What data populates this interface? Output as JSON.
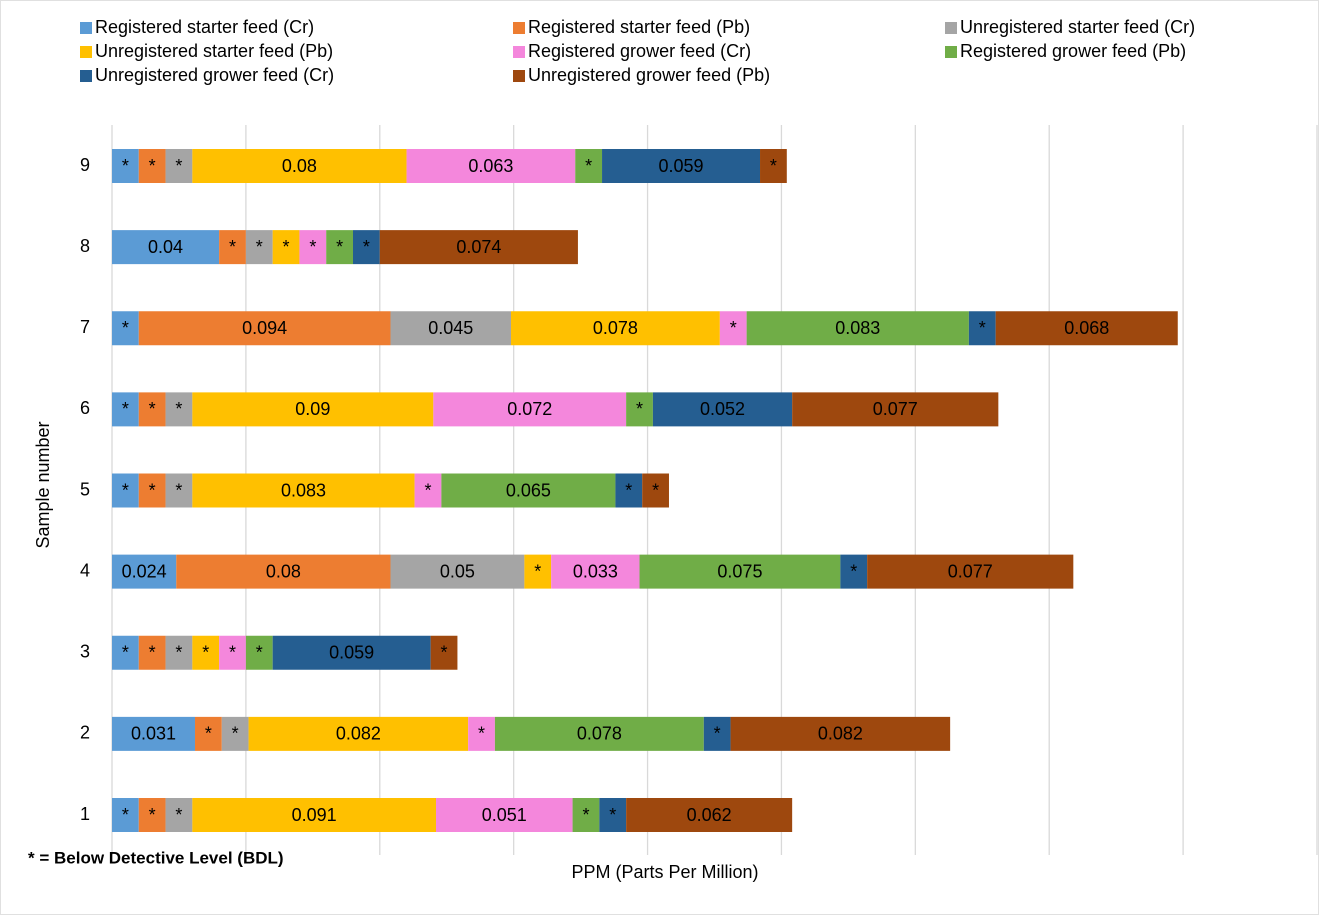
{
  "chart_data": {
    "type": "stacked-bar",
    "orientation": "horizontal",
    "x_label": "PPM (Parts Per Million)",
    "y_label": "Sample number",
    "note": "* = Below Detective Level (BDL)",
    "categories": [
      "1",
      "2",
      "3",
      "4",
      "5",
      "6",
      "7",
      "8",
      "9"
    ],
    "xlim": [
      0,
      0.45
    ],
    "xticks": [
      0,
      0.05,
      0.1,
      0.15,
      0.2,
      0.25,
      0.3,
      0.35,
      0.4,
      0.45
    ],
    "grid": true,
    "series": [
      {
        "name": "Registered starter feed (Cr)",
        "color": "#5b9bd5",
        "values": [
          0.01,
          0.031,
          0.01,
          0.024,
          0.01,
          0.01,
          0.01,
          0.04,
          0.01
        ],
        "value_labels": [
          "*",
          "0.031",
          "*",
          "0.024",
          "*",
          "*",
          "*",
          "0.04",
          "*"
        ]
      },
      {
        "name": "Registered starter feed (Pb)",
        "color": "#ed7d31",
        "values": [
          0.01,
          0.01,
          0.01,
          0.08,
          0.01,
          0.01,
          0.094,
          0.01,
          0.01
        ],
        "value_labels": [
          "*",
          "*",
          "*",
          "0.08",
          "*",
          "*",
          "0.094",
          "*",
          "*"
        ]
      },
      {
        "name": "Unregistered starter feed (Cr)",
        "color": "#a5a5a5",
        "values": [
          0.01,
          0.01,
          0.01,
          0.05,
          0.01,
          0.01,
          0.045,
          0.01,
          0.01
        ],
        "value_labels": [
          "*",
          "*",
          "*",
          "0.05",
          "*",
          "*",
          "0.045",
          "*",
          "*"
        ]
      },
      {
        "name": "Unregistered starter feed (Pb)",
        "color": "#ffc000",
        "values": [
          0.091,
          0.082,
          0.01,
          0.01,
          0.083,
          0.09,
          0.078,
          0.01,
          0.08
        ],
        "value_labels": [
          "0.091",
          "0.082",
          "*",
          "*",
          "0.083",
          "0.09",
          "0.078",
          "*",
          "0.08"
        ]
      },
      {
        "name": "Registered grower feed (Cr)",
        "color": "#f487dc",
        "values": [
          0.051,
          0.01,
          0.01,
          0.033,
          0.01,
          0.072,
          0.01,
          0.01,
          0.063
        ],
        "value_labels": [
          "0.051",
          "*",
          "*",
          "0.033",
          "*",
          "0.072",
          "*",
          "*",
          "0.063"
        ]
      },
      {
        "name": "Registered grower feed (Pb)",
        "color": "#70ad47",
        "values": [
          0.01,
          0.078,
          0.01,
          0.075,
          0.065,
          0.01,
          0.083,
          0.01,
          0.01
        ],
        "value_labels": [
          "*",
          "0.078",
          "*",
          "0.075",
          "0.065",
          "*",
          "0.083",
          "*",
          "*"
        ]
      },
      {
        "name": "Unregistered grower feed (Cr)",
        "color": "#255e91",
        "values": [
          0.01,
          0.01,
          0.059,
          0.01,
          0.01,
          0.052,
          0.01,
          0.01,
          0.059
        ],
        "value_labels": [
          "*",
          "*",
          "0.059",
          "*",
          "*",
          "0.052",
          "*",
          "*",
          "0.059"
        ]
      },
      {
        "name": "Unregistered grower feed (Pb)",
        "color": "#9e480e",
        "values": [
          0.062,
          0.082,
          0.01,
          0.077,
          0.01,
          0.077,
          0.068,
          0.074,
          0.01
        ],
        "value_labels": [
          "0.062",
          "0.082",
          "*",
          "0.077",
          "*",
          "0.077",
          "0.068",
          "0.074",
          "*"
        ]
      }
    ]
  }
}
